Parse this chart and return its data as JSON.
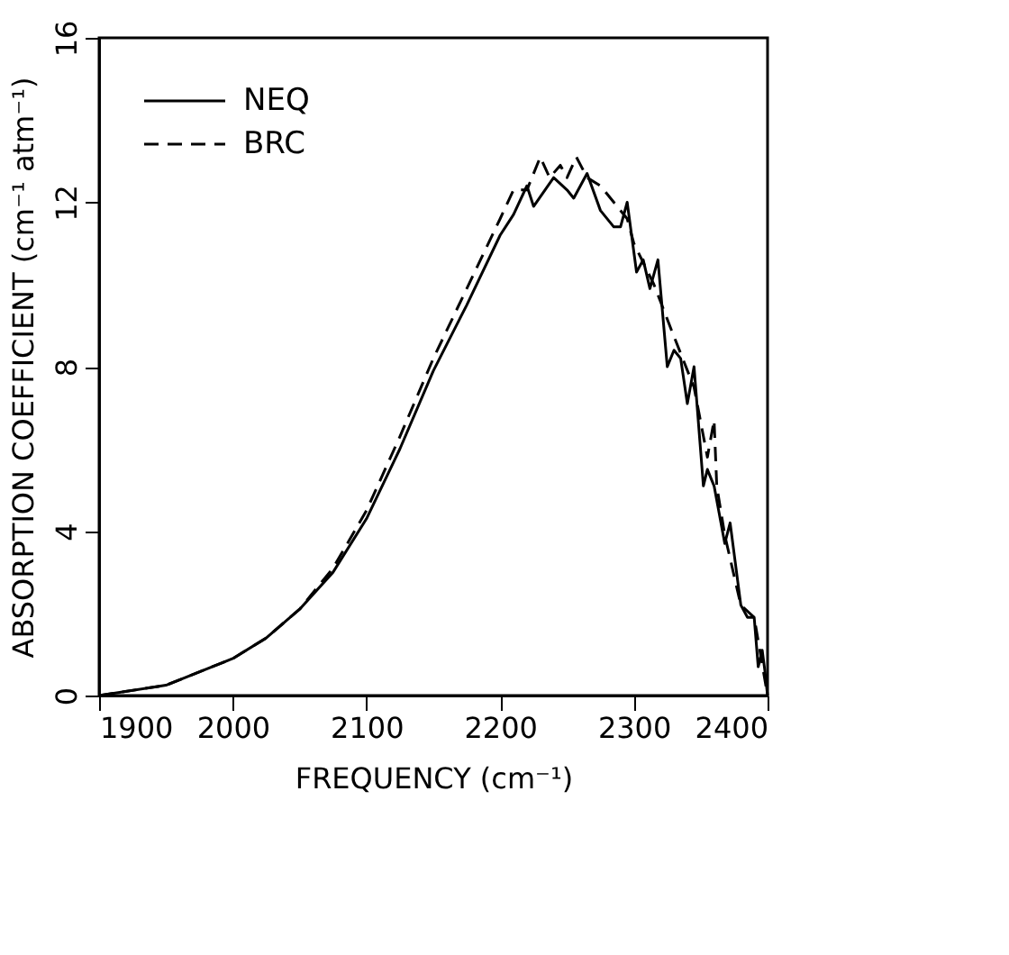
{
  "chart_data": {
    "type": "line",
    "xlabel": "FREQUENCY (cm⁻¹)",
    "ylabel": "ABSORPTION COEFFICIENT (cm⁻¹ atm⁻¹)",
    "xlim": [
      1900,
      2400
    ],
    "ylim": [
      0,
      16
    ],
    "xticks": [
      1900,
      2000,
      2100,
      2200,
      2300,
      2400
    ],
    "yticks": [
      0,
      4,
      8,
      12,
      16
    ],
    "grid": false,
    "legend": "top left",
    "marker": "none",
    "series": [
      {
        "name": "NEQ",
        "color": "#000000",
        "line_style": "solid",
        "x": [
          1900,
          1950,
          2000,
          2025,
          2050,
          2075,
          2100,
          2125,
          2150,
          2175,
          2200,
          2210,
          2220,
          2225,
          2240,
          2250,
          2255,
          2265,
          2275,
          2285,
          2290,
          2295,
          2302,
          2307,
          2312,
          2318,
          2325,
          2330,
          2335,
          2340,
          2345,
          2352,
          2355,
          2360,
          2368,
          2372,
          2380,
          2385,
          2390,
          2393,
          2396,
          2398,
          2400
        ],
        "values": [
          0,
          0.25,
          0.9,
          1.4,
          2.1,
          3.0,
          4.3,
          6.0,
          7.9,
          9.5,
          11.2,
          11.7,
          12.4,
          11.9,
          12.6,
          12.3,
          12.1,
          12.7,
          11.8,
          11.4,
          11.4,
          12.0,
          10.3,
          10.6,
          9.9,
          10.6,
          8.0,
          8.4,
          8.2,
          7.1,
          8.0,
          5.1,
          5.5,
          5.1,
          3.7,
          4.2,
          2.2,
          1.9,
          1.9,
          0.7,
          1.1,
          0.6,
          0
        ]
      },
      {
        "name": "BRC",
        "color": "#000000",
        "line_style": "dashed",
        "x": [
          1900,
          1950,
          2000,
          2025,
          2050,
          2075,
          2100,
          2125,
          2150,
          2175,
          2200,
          2210,
          2220,
          2230,
          2237,
          2245,
          2250,
          2257,
          2265,
          2275,
          2285,
          2295,
          2300,
          2315,
          2328,
          2345,
          2355,
          2360,
          2362,
          2368,
          2380,
          2390,
          2400
        ],
        "values": [
          0,
          0.25,
          0.9,
          1.4,
          2.1,
          3.1,
          4.5,
          6.3,
          8.2,
          9.9,
          11.6,
          12.3,
          12.3,
          13.1,
          12.6,
          12.9,
          12.6,
          13.1,
          12.6,
          12.4,
          12.0,
          11.6,
          11.0,
          10.0,
          8.9,
          7.5,
          5.8,
          6.7,
          5.1,
          3.9,
          2.2,
          1.9,
          0
        ]
      }
    ]
  }
}
